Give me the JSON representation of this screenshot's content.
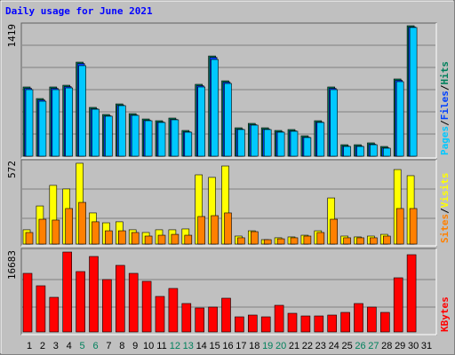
{
  "chart_data": [
    {
      "type": "bar",
      "title": "Daily usage for June 2021",
      "ylim": [
        0,
        1419
      ],
      "yticks": [
        1419
      ],
      "legend_separator": "/",
      "series": [
        {
          "name": "Hits",
          "color": "#00805c",
          "values": [
            753,
            627,
            753,
            772,
            1023,
            531,
            454,
            569,
            463,
            405,
            386,
            415,
            280,
            782,
            1090,
            820,
            309,
            357,
            309,
            280,
            290,
            222,
            386,
            753,
            125,
            125,
            145,
            106,
            840,
            1419,
            0
          ]
        },
        {
          "name": "Files",
          "color": "#0040ff",
          "values": [
            738,
            612,
            738,
            757,
            1008,
            516,
            439,
            554,
            448,
            390,
            371,
            400,
            265,
            767,
            1075,
            805,
            294,
            342,
            294,
            265,
            275,
            207,
            371,
            738,
            110,
            110,
            130,
            91,
            825,
            1405,
            0
          ]
        },
        {
          "name": "Pages",
          "color": "#00c8ff",
          "values": [
            724,
            598,
            724,
            743,
            985,
            511,
            435,
            550,
            444,
            386,
            367,
            396,
            261,
            753,
            1052,
            791,
            290,
            338,
            290,
            261,
            271,
            203,
            367,
            724,
            106,
            106,
            125,
            87,
            811,
            1400,
            0
          ]
        }
      ]
    },
    {
      "type": "bar",
      "ylim": [
        0,
        572
      ],
      "yticks": [
        572
      ],
      "legend_separator": "/",
      "series": [
        {
          "name": "Visits",
          "color": "#ffff00",
          "values": [
            100,
            267,
            411,
            386,
            566,
            218,
            149,
            156,
            100,
            81,
            100,
            100,
            106,
            485,
            467,
            547,
            56,
            93,
            31,
            44,
            50,
            62,
            93,
            323,
            56,
            50,
            56,
            68,
            522,
            479,
            0
          ]
        },
        {
          "name": "Sites",
          "color": "#ff8000",
          "values": [
            81,
            174,
            168,
            249,
            292,
            156,
            93,
            93,
            81,
            56,
            62,
            68,
            62,
            193,
            199,
            218,
            44,
            87,
            31,
            37,
            44,
            56,
            81,
            174,
            44,
            44,
            44,
            56,
            249,
            249,
            0
          ]
        }
      ]
    },
    {
      "type": "bar",
      "ylim": [
        0,
        16683
      ],
      "yticks": [
        16683
      ],
      "series": [
        {
          "name": "KBytes",
          "color": "#ff0000",
          "values": [
            12236,
            9641,
            7231,
            16683,
            12607,
            15759,
            10939,
            13905,
            12236,
            10568,
            7416,
            9085,
            5933,
            5006,
            5191,
            7045,
            3152,
            3523,
            3152,
            5562,
            3893,
            3337,
            3337,
            3523,
            4079,
            5933,
            5191,
            4079,
            11309,
            16130,
            0
          ]
        }
      ],
      "categories": [
        "1",
        "2",
        "3",
        "4",
        "5",
        "6",
        "7",
        "8",
        "9",
        "10",
        "11",
        "12",
        "13",
        "14",
        "15",
        "16",
        "17",
        "18",
        "19",
        "20",
        "21",
        "22",
        "23",
        "24",
        "25",
        "26",
        "27",
        "28",
        "29",
        "30",
        "31"
      ],
      "category_colors": [
        "#000000",
        "#000000",
        "#000000",
        "#000000",
        "#00805c",
        "#00805c",
        "#000000",
        "#000000",
        "#000000",
        "#000000",
        "#000000",
        "#00805c",
        "#00805c",
        "#000000",
        "#000000",
        "#000000",
        "#000000",
        "#000000",
        "#00805c",
        "#00805c",
        "#000000",
        "#000000",
        "#000000",
        "#000000",
        "#000000",
        "#00805c",
        "#00805c",
        "#000000",
        "#000000",
        "#000000",
        "#000000"
      ]
    }
  ]
}
